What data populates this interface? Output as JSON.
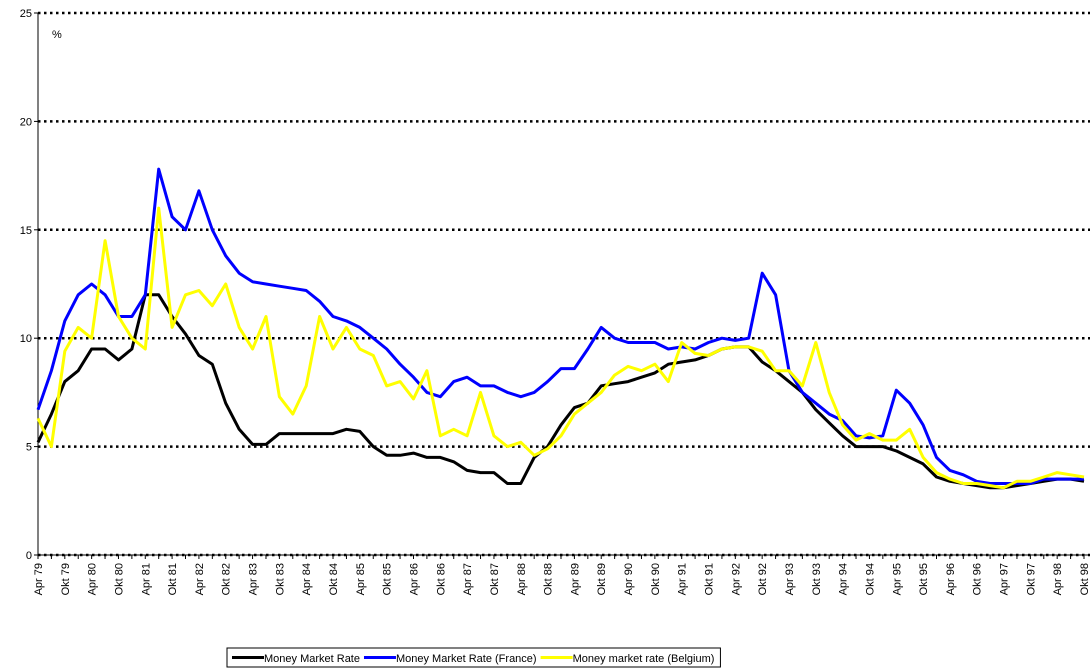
{
  "chart_data": {
    "type": "line",
    "y_axis_label": "%",
    "categories": [
      "Apr 79",
      null,
      "Okt 79",
      null,
      "Apr 80",
      null,
      "Okt 80",
      null,
      "Apr 81",
      null,
      "Okt 81",
      null,
      "Apr 82",
      null,
      "Okt 82",
      null,
      "Apr 83",
      null,
      "Okt 83",
      null,
      "Apr 84",
      null,
      "Okt 84",
      null,
      "Apr 85",
      null,
      "Okt 85",
      null,
      "Apr 86",
      null,
      "Okt 86",
      null,
      "Apr 87",
      null,
      "Okt 87",
      null,
      "Apr 88",
      null,
      "Okt 88",
      null,
      "Apr 89",
      null,
      "Okt 89",
      null,
      "Apr 90",
      null,
      "Okt 90",
      null,
      "Apr 91",
      null,
      "Okt 91",
      null,
      "Apr 92",
      null,
      "Okt 92",
      null,
      "Apr 93",
      null,
      "Okt 93",
      null,
      "Apr 94",
      null,
      "Okt 94",
      null,
      "Apr 95",
      null,
      "Okt 95",
      null,
      "Apr 96",
      null,
      "Okt 96",
      null,
      "Apr 97",
      null,
      "Okt 97",
      null,
      "Apr 98",
      null,
      "Okt 98"
    ],
    "series": [
      {
        "name": "Money Market Rate",
        "color": "#000000",
        "values": [
          5.2,
          6.5,
          8.0,
          8.5,
          9.5,
          9.5,
          9.0,
          9.5,
          12.0,
          12.0,
          11.0,
          10.2,
          9.2,
          8.8,
          7.0,
          5.8,
          5.1,
          5.1,
          5.6,
          5.6,
          5.6,
          5.6,
          5.6,
          5.8,
          5.7,
          5.0,
          4.6,
          4.6,
          4.7,
          4.5,
          4.5,
          4.3,
          3.9,
          3.8,
          3.8,
          3.3,
          3.3,
          4.5,
          5.0,
          6.0,
          6.8,
          7.0,
          7.8,
          7.9,
          8.0,
          8.2,
          8.4,
          8.8,
          8.9,
          9.0,
          9.2,
          9.5,
          9.6,
          9.6,
          8.9,
          8.5,
          8.0,
          7.5,
          6.7,
          6.1,
          5.5,
          5.0,
          5.0,
          5.0,
          4.8,
          4.5,
          4.2,
          3.6,
          3.4,
          3.3,
          3.2,
          3.1,
          3.1,
          3.2,
          3.3,
          3.4,
          3.5,
          3.5,
          3.4
        ]
      },
      {
        "name": "Money Market Rate (France)",
        "color": "#0000ff",
        "values": [
          6.7,
          8.5,
          10.8,
          12.0,
          12.5,
          12.0,
          11.0,
          11.0,
          12.0,
          17.8,
          15.6,
          15.0,
          16.8,
          15.0,
          13.8,
          13.0,
          12.6,
          12.5,
          12.4,
          12.3,
          12.2,
          11.7,
          11.0,
          10.8,
          10.5,
          10.0,
          9.5,
          8.8,
          8.2,
          7.5,
          7.3,
          8.0,
          8.2,
          7.8,
          7.8,
          7.5,
          7.3,
          7.5,
          8.0,
          8.6,
          8.6,
          9.5,
          10.5,
          10.0,
          9.8,
          9.8,
          9.8,
          9.5,
          9.6,
          9.5,
          9.8,
          10.0,
          9.9,
          10.0,
          13.0,
          12.0,
          8.5,
          7.5,
          7.0,
          6.5,
          6.2,
          5.5,
          5.4,
          5.5,
          7.6,
          7.0,
          6.0,
          4.5,
          3.9,
          3.7,
          3.4,
          3.3,
          3.3,
          3.3,
          3.3,
          3.5,
          3.5,
          3.5,
          3.5
        ]
      },
      {
        "name": "Money market rate (Belgium)",
        "color": "#ffff00",
        "values": [
          6.3,
          5.0,
          9.4,
          10.5,
          10.0,
          14.5,
          11.0,
          10.0,
          9.5,
          16.0,
          10.5,
          12.0,
          12.2,
          11.5,
          12.5,
          10.5,
          9.5,
          11.0,
          7.3,
          6.5,
          7.8,
          11.0,
          9.5,
          10.5,
          9.5,
          9.2,
          7.8,
          8.0,
          7.2,
          8.5,
          5.5,
          5.8,
          5.5,
          7.5,
          5.5,
          5.0,
          5.2,
          4.6,
          4.9,
          5.5,
          6.5,
          7.0,
          7.5,
          8.3,
          8.7,
          8.5,
          8.8,
          8.0,
          9.8,
          9.3,
          9.2,
          9.5,
          9.6,
          9.6,
          9.4,
          8.5,
          8.5,
          7.8,
          9.8,
          7.5,
          6.0,
          5.3,
          5.6,
          5.3,
          5.3,
          5.8,
          4.5,
          3.8,
          3.5,
          3.3,
          3.3,
          3.2,
          3.1,
          3.4,
          3.4,
          3.6,
          3.8,
          3.7,
          3.6
        ]
      }
    ],
    "ylim": [
      0,
      25
    ],
    "yticks": [
      0,
      5,
      10,
      15,
      20,
      25
    ],
    "grid": true,
    "legend_position": "bottom"
  }
}
